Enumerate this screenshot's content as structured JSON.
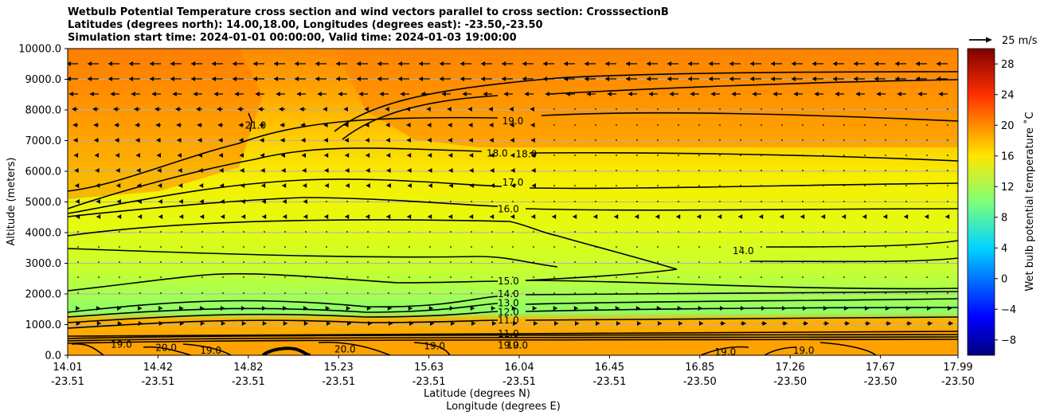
{
  "title": {
    "line1": "Wetbulb Potential Temperature cross section and wind vectors parallel to cross section: CrosssectionB",
    "line2": "Latitudes (degrees north): 14.00,18.00, Longitudes (degrees east): -23.50,-23.50",
    "line3": "Simulation start time: 2024-01-01 00:00:00, Valid time: 2024-01-03 19:00:00"
  },
  "chart_data": {
    "type": "heatmap",
    "xlabel": "Latitude (degrees N)",
    "xlabel2": "Longitude (degrees E)",
    "ylabel": "Altitude (meters)",
    "ylim": [
      0,
      10000
    ],
    "yticks": [
      "0.0",
      "1000.0",
      "2000.0",
      "3000.0",
      "4000.0",
      "5000.0",
      "6000.0",
      "7000.0",
      "8000.0",
      "9000.0",
      "10000.0"
    ],
    "xticks": [
      {
        "lat": "14.01",
        "lon": "-23.51"
      },
      {
        "lat": "14.42",
        "lon": "-23.51"
      },
      {
        "lat": "14.82",
        "lon": "-23.51"
      },
      {
        "lat": "15.23",
        "lon": "-23.51"
      },
      {
        "lat": "15.63",
        "lon": "-23.51"
      },
      {
        "lat": "16.04",
        "lon": "-23.51"
      },
      {
        "lat": "16.45",
        "lon": "-23.51"
      },
      {
        "lat": "16.85",
        "lon": "-23.50"
      },
      {
        "lat": "17.26",
        "lon": "-23.50"
      },
      {
        "lat": "17.67",
        "lon": "-23.50"
      },
      {
        "lat": "17.99",
        "lon": "-23.50"
      }
    ],
    "grid": "horizontal",
    "colorbar": {
      "label": "Wet bulb potential temperature ˚C",
      "range": [
        -10,
        30
      ],
      "ticks": [
        "-8",
        "-4",
        "0",
        "4",
        "8",
        "12",
        "16",
        "20",
        "24",
        "28"
      ]
    },
    "wind_reference": "25 m/s",
    "contour_labels": [
      {
        "text": "21.0",
        "lat": 14.85,
        "alt": 7500
      },
      {
        "text": "19.0",
        "lat": 16.0,
        "alt": 7630
      },
      {
        "text": "18.0",
        "lat": 15.93,
        "alt": 6580
      },
      {
        "text": "18.0",
        "lat": 16.06,
        "alt": 6560
      },
      {
        "text": "17.0",
        "lat": 16.0,
        "alt": 5630
      },
      {
        "text": "16.0",
        "lat": 15.98,
        "alt": 4760
      },
      {
        "text": "14.0",
        "lat": 17.03,
        "alt": 3400
      },
      {
        "text": "15.0",
        "lat": 15.98,
        "alt": 2420
      },
      {
        "text": "14.0",
        "lat": 15.98,
        "alt": 2000
      },
      {
        "text": "13.0",
        "lat": 15.98,
        "alt": 1700
      },
      {
        "text": "12.0",
        "lat": 15.98,
        "alt": 1400
      },
      {
        "text": "11.0",
        "lat": 15.98,
        "alt": 1140
      },
      {
        "text": "11.0",
        "lat": 15.98,
        "alt": 700
      },
      {
        "text": "19.0",
        "lat": 15.98,
        "alt": 330
      },
      {
        "text": "19.0",
        "lat": 16.02,
        "alt": 330
      },
      {
        "text": "19.0",
        "lat": 14.25,
        "alt": 350
      },
      {
        "text": "20.0",
        "lat": 14.45,
        "alt": 250
      },
      {
        "text": "19.0",
        "lat": 14.65,
        "alt": 150
      },
      {
        "text": "20.0",
        "lat": 15.25,
        "alt": 200
      },
      {
        "text": "19.0",
        "lat": 15.65,
        "alt": 300
      },
      {
        "text": "19.0",
        "lat": 16.95,
        "alt": 100
      },
      {
        "text": "19.0",
        "lat": 17.3,
        "alt": 150
      }
    ]
  }
}
